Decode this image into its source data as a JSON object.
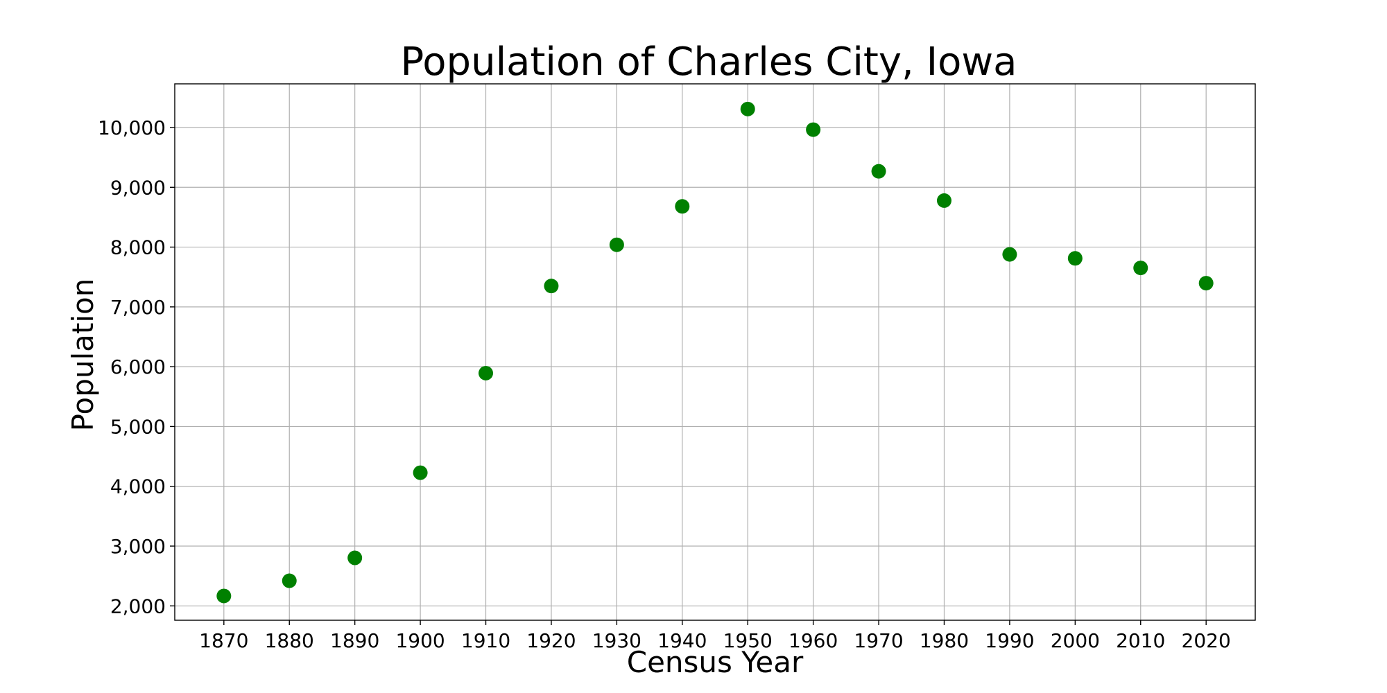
{
  "chart_data": {
    "type": "scatter",
    "title": "Population of Charles City, Iowa",
    "xlabel": "Census Year",
    "ylabel": "Population",
    "x": [
      1870,
      1880,
      1890,
      1900,
      1910,
      1920,
      1930,
      1940,
      1950,
      1960,
      1970,
      1980,
      1990,
      2000,
      2010,
      2020
    ],
    "y": [
      2166,
      2420,
      2803,
      4227,
      5892,
      7350,
      8039,
      8681,
      10309,
      9964,
      9268,
      8778,
      7878,
      7812,
      7652,
      7397
    ],
    "xticks": [
      "1870",
      "1880",
      "1890",
      "1900",
      "1910",
      "1920",
      "1930",
      "1940",
      "1950",
      "1960",
      "1970",
      "1980",
      "1990",
      "2000",
      "2010",
      "2020"
    ],
    "yticks": [
      "2,000",
      "3,000",
      "4,000",
      "5,000",
      "6,000",
      "7,000",
      "8,000",
      "9,000",
      "10,000"
    ],
    "xlim": [
      1862.5,
      2027.5
    ],
    "ylim": [
      1760,
      10730
    ],
    "grid": true,
    "marker_color": "#008000"
  }
}
